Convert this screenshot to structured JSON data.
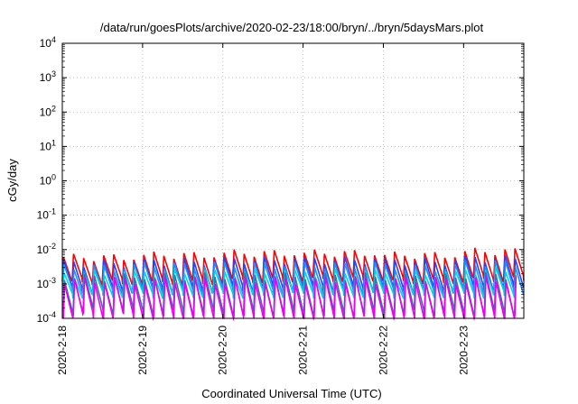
{
  "chart_data": {
    "type": "line",
    "title": "/data/run/goesPlots/archive/2020-02-23/18:00/bryn/../bryn/5daysMars.plot",
    "xlabel": "Coordinated Universal Time (UTC)",
    "ylabel": "cGy/day",
    "yscale": "log",
    "ylim": [
      0.0001,
      10000
    ],
    "xlim": [
      "2020-02-18",
      "2020-02-23T18:00"
    ],
    "grid": true,
    "y_ticks": [
      {
        "value": 0.0001,
        "base": "10",
        "exp": "-4"
      },
      {
        "value": 0.001,
        "base": "10",
        "exp": "-3"
      },
      {
        "value": 0.01,
        "base": "10",
        "exp": "-2"
      },
      {
        "value": 0.1,
        "base": "10",
        "exp": "-1"
      },
      {
        "value": 1,
        "base": "10",
        "exp": "0"
      },
      {
        "value": 10,
        "base": "10",
        "exp": "1"
      },
      {
        "value": 100,
        "base": "10",
        "exp": "2"
      },
      {
        "value": 1000,
        "base": "10",
        "exp": "3"
      },
      {
        "value": 10000,
        "base": "10",
        "exp": "4"
      }
    ],
    "x_ticks": [
      {
        "value": "2020-02-18",
        "label": "2020-2-18"
      },
      {
        "value": "2020-02-19",
        "label": "2020-2-19"
      },
      {
        "value": "2020-02-20",
        "label": "2020-2-20"
      },
      {
        "value": "2020-02-21",
        "label": "2020-2-21"
      },
      {
        "value": "2020-02-22",
        "label": "2020-2-22"
      },
      {
        "value": "2020-02-23",
        "label": "2020-2-23"
      }
    ],
    "series_note_estimated": true,
    "series": [
      {
        "color": "#ff0000",
        "values_by_day": {
          "2020-02-18": [
            0.006,
            0.0012
          ],
          "2020-02-19": [
            0.007,
            0.0012
          ],
          "2020-02-20": [
            0.008,
            0.0014
          ],
          "2020-02-21": [
            0.008,
            0.0015
          ],
          "2020-02-22": [
            0.007,
            0.0013
          ],
          "2020-02-23": [
            0.009,
            0.0015
          ]
        }
      },
      {
        "color": "#2244ff",
        "values_by_day": {
          "2020-02-18": [
            0.004,
            0.0007
          ],
          "2020-02-19": [
            0.0045,
            0.0007
          ],
          "2020-02-20": [
            0.005,
            0.0008
          ],
          "2020-02-21": [
            0.005,
            0.0008
          ],
          "2020-02-22": [
            0.0045,
            0.0007
          ],
          "2020-02-23": [
            0.0055,
            0.0008
          ]
        }
      },
      {
        "color": "#1e90ff",
        "values_by_day": {
          "2020-02-18": [
            0.003,
            0.0006
          ],
          "2020-02-19": [
            0.0035,
            0.0006
          ],
          "2020-02-20": [
            0.0035,
            0.0006
          ],
          "2020-02-21": [
            0.0035,
            0.0006
          ],
          "2020-02-22": [
            0.003,
            0.0006
          ],
          "2020-02-23": [
            0.004,
            0.0006
          ]
        }
      },
      {
        "color": "#00d5e0",
        "values_by_day": {
          "2020-02-18": [
            0.002,
            0.0005
          ],
          "2020-02-19": [
            0.0022,
            0.0005
          ],
          "2020-02-20": [
            0.0022,
            0.0005
          ],
          "2020-02-21": [
            0.0022,
            0.0005
          ],
          "2020-02-22": [
            0.002,
            0.0005
          ],
          "2020-02-23": [
            0.0025,
            0.0005
          ]
        }
      },
      {
        "color": "#3a6fb0",
        "values_by_day": {
          "2020-02-18": [
            0.0016,
            0.00018
          ],
          "2020-02-19": [
            0.0017,
            0.00016
          ],
          "2020-02-20": [
            0.0017,
            0.00015
          ],
          "2020-02-21": [
            0.0017,
            0.00015
          ],
          "2020-02-22": [
            0.0016,
            0.00016
          ],
          "2020-02-23": [
            0.0018,
            0.00015
          ]
        }
      },
      {
        "color": "#ee00ee",
        "values_by_day": {
          "2020-02-18": [
            0.0013,
            0.00012
          ],
          "2020-02-19": [
            0.0013,
            0.0001
          ],
          "2020-02-20": [
            0.0013,
            0.0001
          ],
          "2020-02-21": [
            0.0013,
            0.0001
          ],
          "2020-02-22": [
            0.0013,
            0.0001
          ],
          "2020-02-23": [
            0.0014,
            0.0001
          ]
        }
      }
    ]
  }
}
